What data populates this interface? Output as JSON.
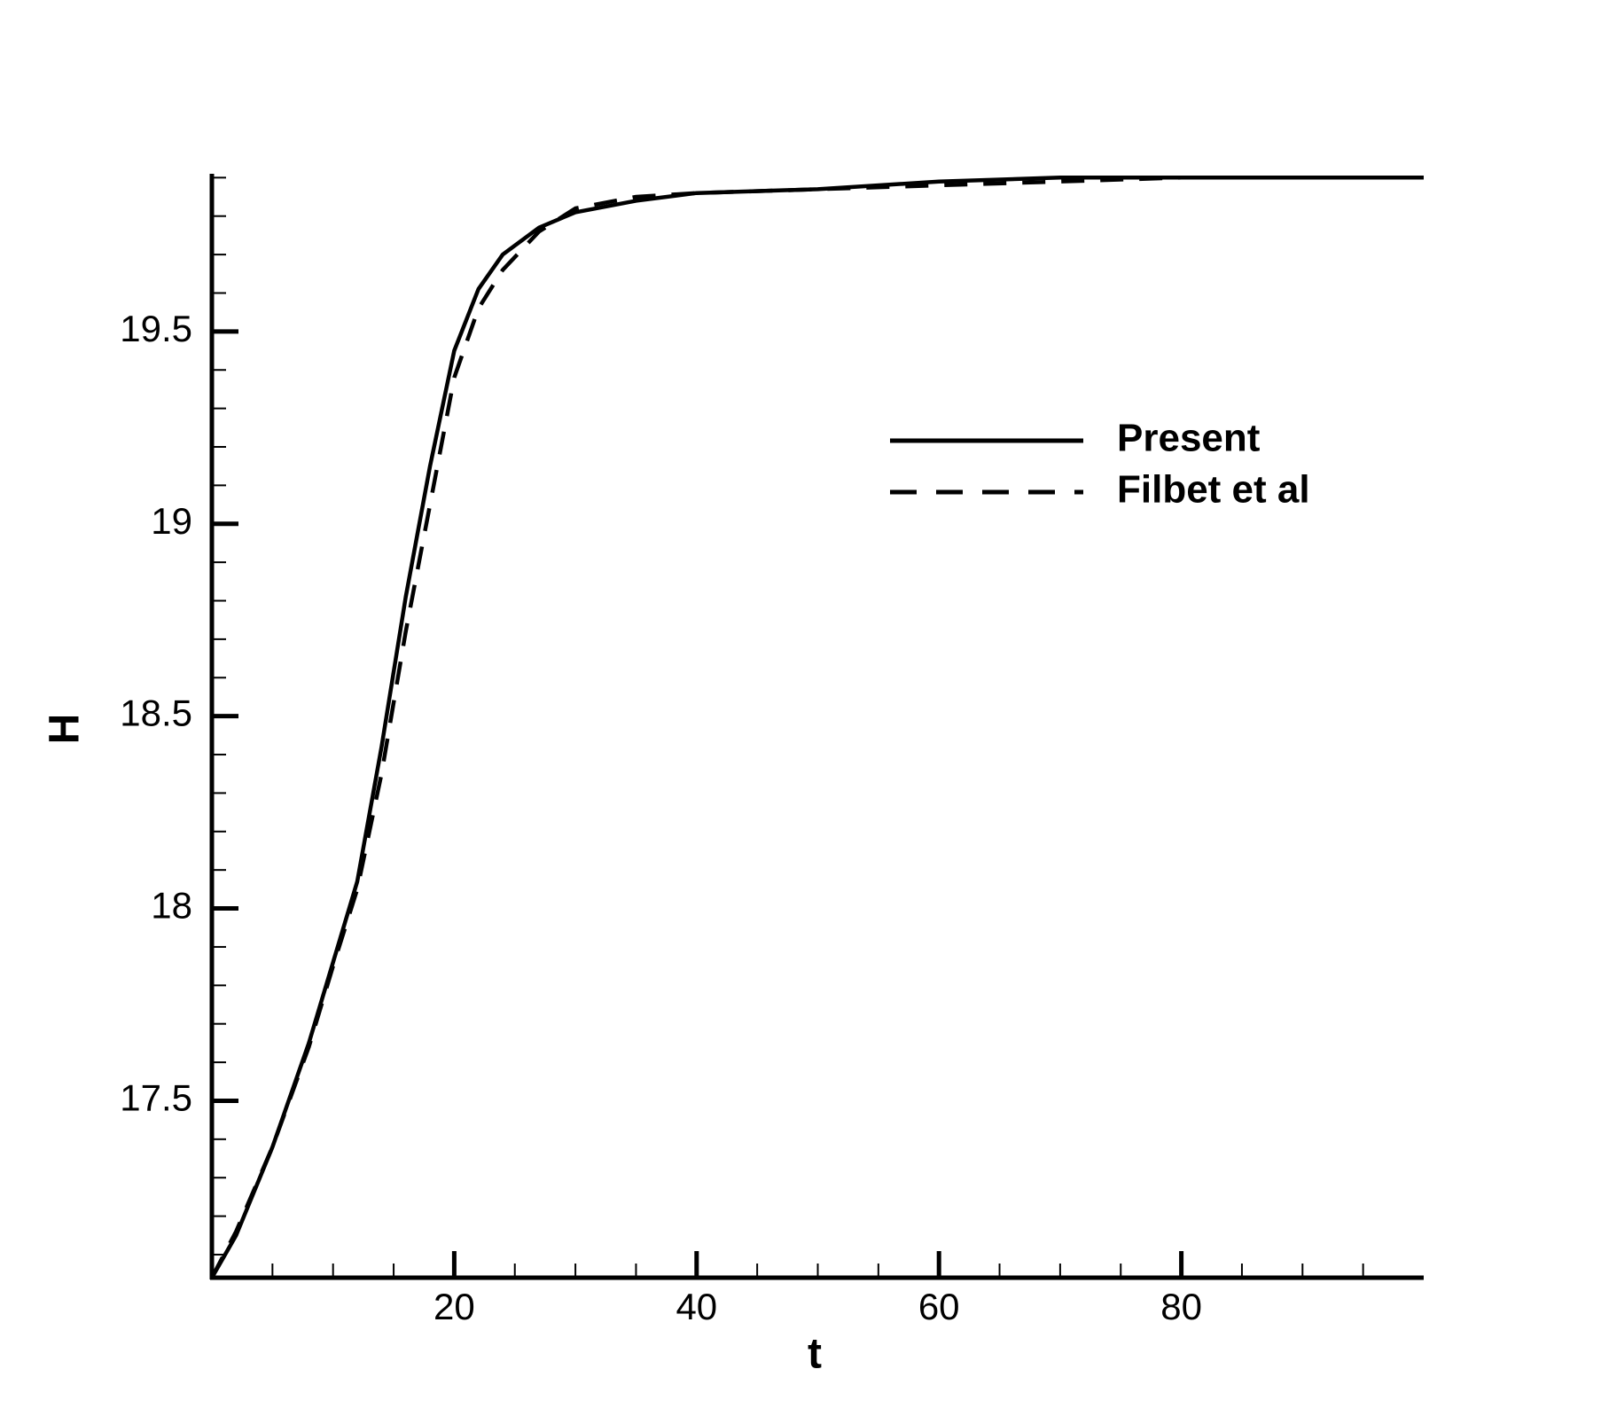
{
  "chart_data": {
    "type": "line",
    "xlabel": "t",
    "ylabel": "H",
    "xlim": [
      0,
      100
    ],
    "ylim": [
      17.04,
      19.91
    ],
    "xticks": [
      20,
      40,
      60,
      80
    ],
    "yticks": [
      17.5,
      18,
      18.5,
      19,
      19.5
    ],
    "xminorticks": [
      5,
      10,
      15,
      25,
      30,
      35,
      45,
      50,
      55,
      65,
      70,
      75,
      85,
      90,
      95
    ],
    "yminorticks": [
      17.1,
      17.2,
      17.3,
      17.4,
      17.6,
      17.7,
      17.8,
      17.9,
      18.1,
      18.2,
      18.3,
      18.4,
      18.6,
      18.7,
      18.8,
      18.9,
      19.1,
      19.2,
      19.3,
      19.4,
      19.6,
      19.7,
      19.8,
      19.9
    ],
    "x": [
      0,
      2,
      5,
      8,
      10,
      12,
      14,
      16,
      18,
      20,
      22,
      24,
      27,
      30,
      35,
      40,
      50,
      60,
      70,
      80,
      100
    ],
    "series": [
      {
        "name": "Present",
        "color": "#000000",
        "dash": "solid",
        "values": [
          17.04,
          17.15,
          17.38,
          17.65,
          17.86,
          18.07,
          18.42,
          18.81,
          19.15,
          19.45,
          19.61,
          19.7,
          19.77,
          19.81,
          19.84,
          19.86,
          19.87,
          19.89,
          19.9,
          19.9,
          19.9
        ]
      },
      {
        "name": "Filbet et al",
        "color": "#000000",
        "dash": "dashed",
        "values": [
          17.04,
          17.16,
          17.38,
          17.64,
          17.85,
          18.05,
          18.35,
          18.72,
          19.05,
          19.38,
          19.56,
          19.66,
          19.76,
          19.82,
          19.85,
          19.86,
          19.87,
          19.88,
          19.89,
          19.9,
          19.9
        ]
      }
    ]
  }
}
